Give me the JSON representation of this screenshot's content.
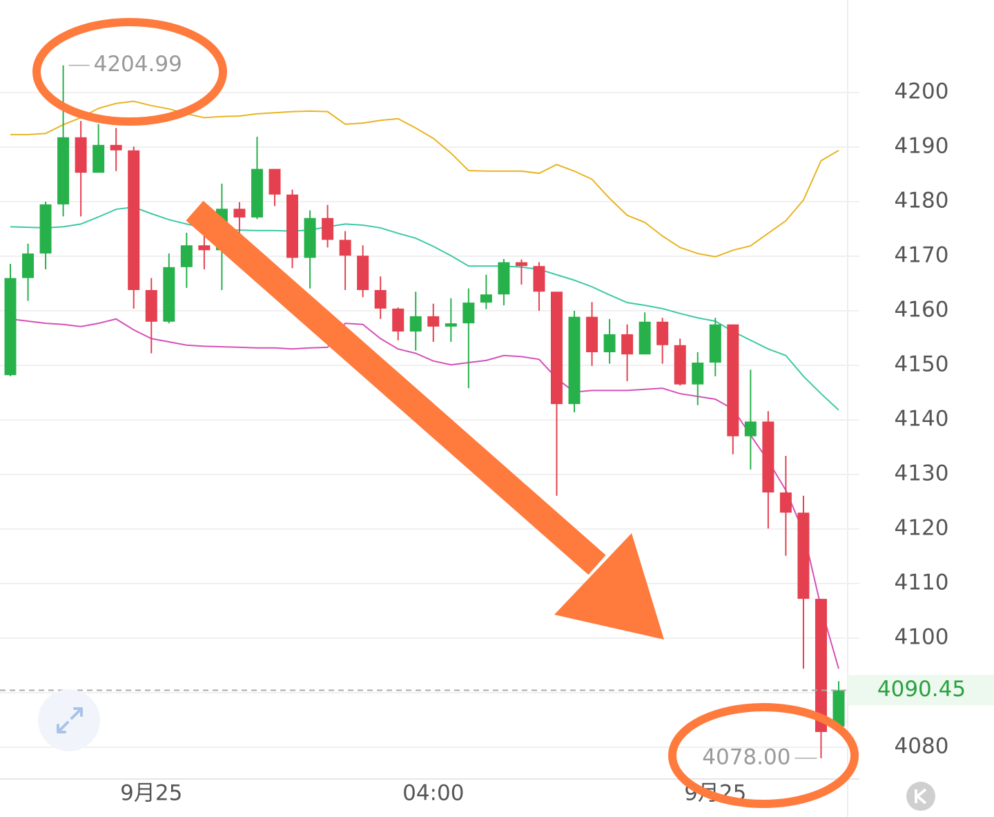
{
  "chart_data": {
    "type": "candlestick",
    "categories": [
      null,
      null,
      null,
      null,
      null,
      null,
      null,
      null,
      "9月25",
      null,
      null,
      null,
      null,
      null,
      null,
      null,
      null,
      null,
      null,
      null,
      null,
      null,
      null,
      null,
      "04:00",
      null,
      null,
      null,
      null,
      null,
      null,
      null,
      null,
      null,
      null,
      null,
      null,
      null,
      null,
      null,
      "9月25",
      null,
      null,
      null,
      null,
      null,
      null,
      null
    ],
    "open": [
      4148.2,
      4166.0,
      4170.5,
      4179.5,
      4191.8,
      4185.3,
      4190.4,
      4189.4,
      4163.8,
      4158.0,
      4168.0,
      4172.0,
      4171.1,
      4178.7,
      4177.1,
      4186.0,
      4181.3,
      4169.7,
      4177.0,
      4173.0,
      4170.1,
      4163.8,
      4160.4,
      4156.2,
      4159.0,
      4157.1,
      4157.7,
      4161.5,
      4163.0,
      4168.9,
      4168.2,
      4163.5,
      4142.9,
      4158.9,
      4152.4,
      4155.7,
      4152.0,
      4158.0,
      4153.7,
      4146.5,
      4150.5,
      4157.5,
      4137.0,
      4139.7,
      4126.7,
      4123.0,
      4107.2,
      4083.8
    ],
    "high": [
      4168.6,
      4172.3,
      4180.0,
      4204.99,
      4194.8,
      4194.2,
      4193.5,
      4190.1,
      4166.0,
      4170.5,
      4174.3,
      4173.9,
      4183.3,
      4179.9,
      4191.9,
      4186.0,
      4182.2,
      4178.4,
      4179.4,
      4174.6,
      4172.0,
      4166.3,
      4160.6,
      4163.5,
      4161.3,
      4162.3,
      4164.1,
      4166.6,
      4169.5,
      4169.4,
      4168.9,
      4163.5,
      4160.0,
      4161.6,
      4158.5,
      4157.5,
      4159.7,
      4158.7,
      4154.9,
      4152.4,
      4158.7,
      4157.5,
      4149.2,
      4141.6,
      4133.4,
      4126.1,
      4107.2,
      4092.1
    ],
    "low": [
      4148.0,
      4161.8,
      4167.6,
      4177.3,
      4177.3,
      4185.3,
      4185.6,
      4160.4,
      4152.2,
      4157.7,
      4164.2,
      4167.6,
      4163.8,
      4173.3,
      4176.8,
      4179.2,
      4167.8,
      4164.1,
      4171.6,
      4163.8,
      4162.5,
      4158.5,
      4154.6,
      4152.7,
      4154.3,
      4154.3,
      4145.8,
      4160.3,
      4161.0,
      4164.8,
      4160.0,
      4126.1,
      4141.4,
      4149.9,
      4150.3,
      4147.1,
      4152.0,
      4150.3,
      4146.3,
      4142.7,
      4148.0,
      4133.7,
      4130.9,
      4120.1,
      4115.1,
      4094.4,
      4078.0,
      4083.8
    ],
    "close": [
      4166.0,
      4170.5,
      4179.5,
      4191.8,
      4185.3,
      4190.4,
      4189.4,
      4163.8,
      4158.0,
      4168.0,
      4172.0,
      4171.1,
      4178.7,
      4177.1,
      4186.0,
      4181.3,
      4169.7,
      4177.0,
      4173.0,
      4170.1,
      4163.8,
      4160.4,
      4156.2,
      4159.0,
      4157.1,
      4157.7,
      4161.5,
      4163.0,
      4168.9,
      4168.2,
      4163.5,
      4142.9,
      4158.9,
      4152.4,
      4155.7,
      4152.0,
      4158.0,
      4153.7,
      4146.5,
      4150.5,
      4157.5,
      4137.0,
      4139.7,
      4126.7,
      4123.0,
      4107.2,
      4082.8,
      4090.45
    ],
    "up_color": "#27b14a",
    "down_color": "#e5404f",
    "bands": [
      {
        "color": "#e8b422",
        "values": [
          4192.3,
          4192.3,
          4192.5,
          4194.1,
          4195.4,
          4197.1,
          4198.0,
          4198.4,
          4197.6,
          4197.0,
          4196.1,
          4195.4,
          4195.6,
          4195.7,
          4196.1,
          4196.3,
          4196.5,
          4196.6,
          4196.5,
          4194.2,
          4194.4,
          4194.9,
          4195.2,
          4193.5,
          4191.6,
          4188.9,
          4185.7,
          4185.6,
          4185.6,
          4185.6,
          4185.2,
          4186.8,
          4185.6,
          4184.1,
          4180.6,
          4177.5,
          4176.2,
          4173.7,
          4171.6,
          4170.5,
          4169.9,
          4171.1,
          4171.9,
          4174.2,
          4176.5,
          4180.3,
          4187.5,
          4189.4
        ]
      },
      {
        "color": "#3cc9a4",
        "values": [
          4175.4,
          4175.3,
          4175.2,
          4175.4,
          4175.9,
          4177.2,
          4178.6,
          4179.0,
          4177.8,
          4176.7,
          4175.9,
          4175.2,
          4174.9,
          4174.8,
          4174.7,
          4174.7,
          4174.6,
          4174.8,
          4175.4,
          4175.9,
          4175.7,
          4175.2,
          4174.2,
          4173.3,
          4171.8,
          4170.1,
          4168.2,
          4168.2,
          4168.2,
          4168.0,
          4167.6,
          4166.6,
          4165.6,
          4164.4,
          4162.9,
          4161.5,
          4161.0,
          4160.4,
          4159.5,
          4158.7,
          4158.1,
          4156.2,
          4154.6,
          4153.0,
          4151.8,
          4148.0,
          4144.8,
          4141.8
        ]
      },
      {
        "color": "#d64fb8",
        "values": [
          4158.5,
          4158.1,
          4157.7,
          4157.5,
          4157.1,
          4157.7,
          4158.5,
          4156.5,
          4154.9,
          4154.3,
          4153.7,
          4153.5,
          4153.4,
          4153.3,
          4153.2,
          4153.2,
          4153.0,
          4153.2,
          4153.3,
          4157.7,
          4157.5,
          4154.9,
          4153.0,
          4152.2,
          4150.8,
          4150.1,
          4150.5,
          4150.9,
          4151.8,
          4151.6,
          4151.1,
          4147.6,
          4145.1,
          4145.4,
          4145.4,
          4145.4,
          4145.6,
          4145.8,
          4144.8,
          4144.3,
          4143.8,
          4142.0,
          4137.2,
          4132.5,
          4127.1,
          4119.5,
          4105.6,
          4094.4
        ]
      }
    ],
    "high_label": 4204.99,
    "low_label": {
      "value": 4078,
      "label": "4078.00"
    },
    "last_price": 4090.45,
    "ylim": [
      4074.18,
      4216.96
    ],
    "yticks": [
      4080,
      4090,
      4100,
      4110,
      4120,
      4130,
      4140,
      4150,
      4160,
      4170,
      4180,
      4190,
      4200
    ],
    "grid": true
  }
}
